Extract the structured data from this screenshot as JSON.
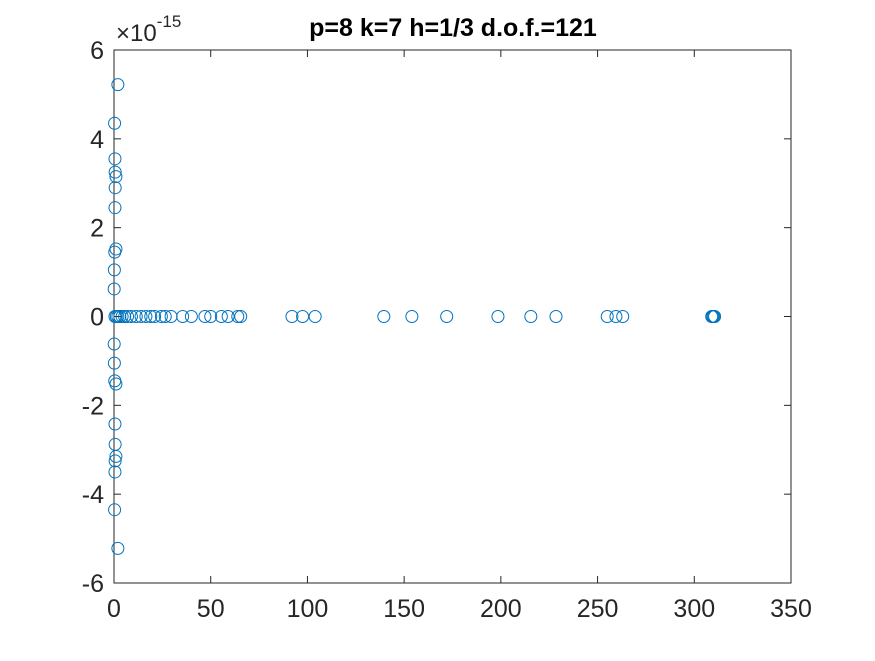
{
  "figure": {
    "title": "p=8 k=7 h=1/3 d.o.f.=121",
    "exponent_base": "×10",
    "exponent_power": "-15"
  },
  "colors": {
    "marker": "#0072BD",
    "axes": "#262626",
    "background": "#ffffff"
  },
  "chart_data": {
    "type": "scatter",
    "title": "p=8 k=7 h=1/3 d.o.f.=121",
    "xlabel": "",
    "ylabel": "",
    "xlim": [
      0,
      350
    ],
    "ylim": [
      -6e-15,
      6e-15
    ],
    "y_exponent": -15,
    "x_ticks": [
      0,
      50,
      100,
      150,
      200,
      250,
      300,
      350
    ],
    "x_tick_labels": [
      "0",
      "50",
      "100",
      "150",
      "200",
      "250",
      "300",
      "350"
    ],
    "y_ticks": [
      -6e-15,
      -4e-15,
      -2e-15,
      0,
      2e-15,
      4e-15,
      6e-15
    ],
    "y_tick_labels": [
      "-6",
      "-4",
      "-2",
      "0",
      "2",
      "4",
      "6"
    ],
    "grid": false,
    "marker": "circle-open",
    "series": [
      {
        "points": [
          [
            2.0,
            5.22e-15
          ],
          [
            0.3,
            4.35e-15
          ],
          [
            0.3,
            -4.35e-15
          ],
          [
            2.0,
            -5.22e-15
          ],
          [
            0.5,
            3.55e-15
          ],
          [
            0.5,
            -3.5e-15
          ],
          [
            0.6,
            3.25e-15
          ],
          [
            0.6,
            -3.25e-15
          ],
          [
            1.0,
            3.15e-15
          ],
          [
            1.0,
            -3.15e-15
          ],
          [
            0.6,
            2.9e-15
          ],
          [
            0.6,
            -2.88e-15
          ],
          [
            0.5,
            2.45e-15
          ],
          [
            0.5,
            -2.42e-15
          ],
          [
            1.0,
            1.52e-15
          ],
          [
            1.0,
            -1.52e-15
          ],
          [
            0.4,
            1.45e-15
          ],
          [
            0.4,
            -1.45e-15
          ],
          [
            0.2,
            1.05e-15
          ],
          [
            0.2,
            -1.05e-15
          ],
          [
            0.1,
            6.2e-16
          ],
          [
            0.1,
            -6.2e-16
          ],
          [
            0.5,
            0
          ],
          [
            1.2,
            0
          ],
          [
            2.0,
            0
          ],
          [
            3.0,
            0
          ],
          [
            4.2,
            0
          ],
          [
            5.5,
            0
          ],
          [
            7.0,
            0
          ],
          [
            9.0,
            0
          ],
          [
            11.5,
            0
          ],
          [
            14.0,
            0
          ],
          [
            16.5,
            0
          ],
          [
            19.0,
            0
          ],
          [
            21.0,
            0
          ],
          [
            24.5,
            0
          ],
          [
            26.5,
            0
          ],
          [
            29.5,
            0
          ],
          [
            35.5,
            0
          ],
          [
            40.0,
            0
          ],
          [
            47.0,
            0
          ],
          [
            50.0,
            0
          ],
          [
            55.5,
            0
          ],
          [
            59.0,
            0
          ],
          [
            64.0,
            0
          ],
          [
            65.5,
            0
          ],
          [
            92.0,
            0
          ],
          [
            97.5,
            0
          ],
          [
            104.0,
            0
          ],
          [
            139.5,
            0
          ],
          [
            154.0,
            0
          ],
          [
            172.0,
            0
          ],
          [
            198.5,
            0
          ],
          [
            215.5,
            0
          ],
          [
            228.5,
            0
          ],
          [
            255.0,
            0
          ],
          [
            259.5,
            0
          ],
          [
            263.0,
            0
          ],
          [
            309.0,
            0
          ],
          [
            309.5,
            0
          ],
          [
            310.0,
            0
          ],
          [
            310.5,
            0
          ]
        ]
      }
    ]
  }
}
